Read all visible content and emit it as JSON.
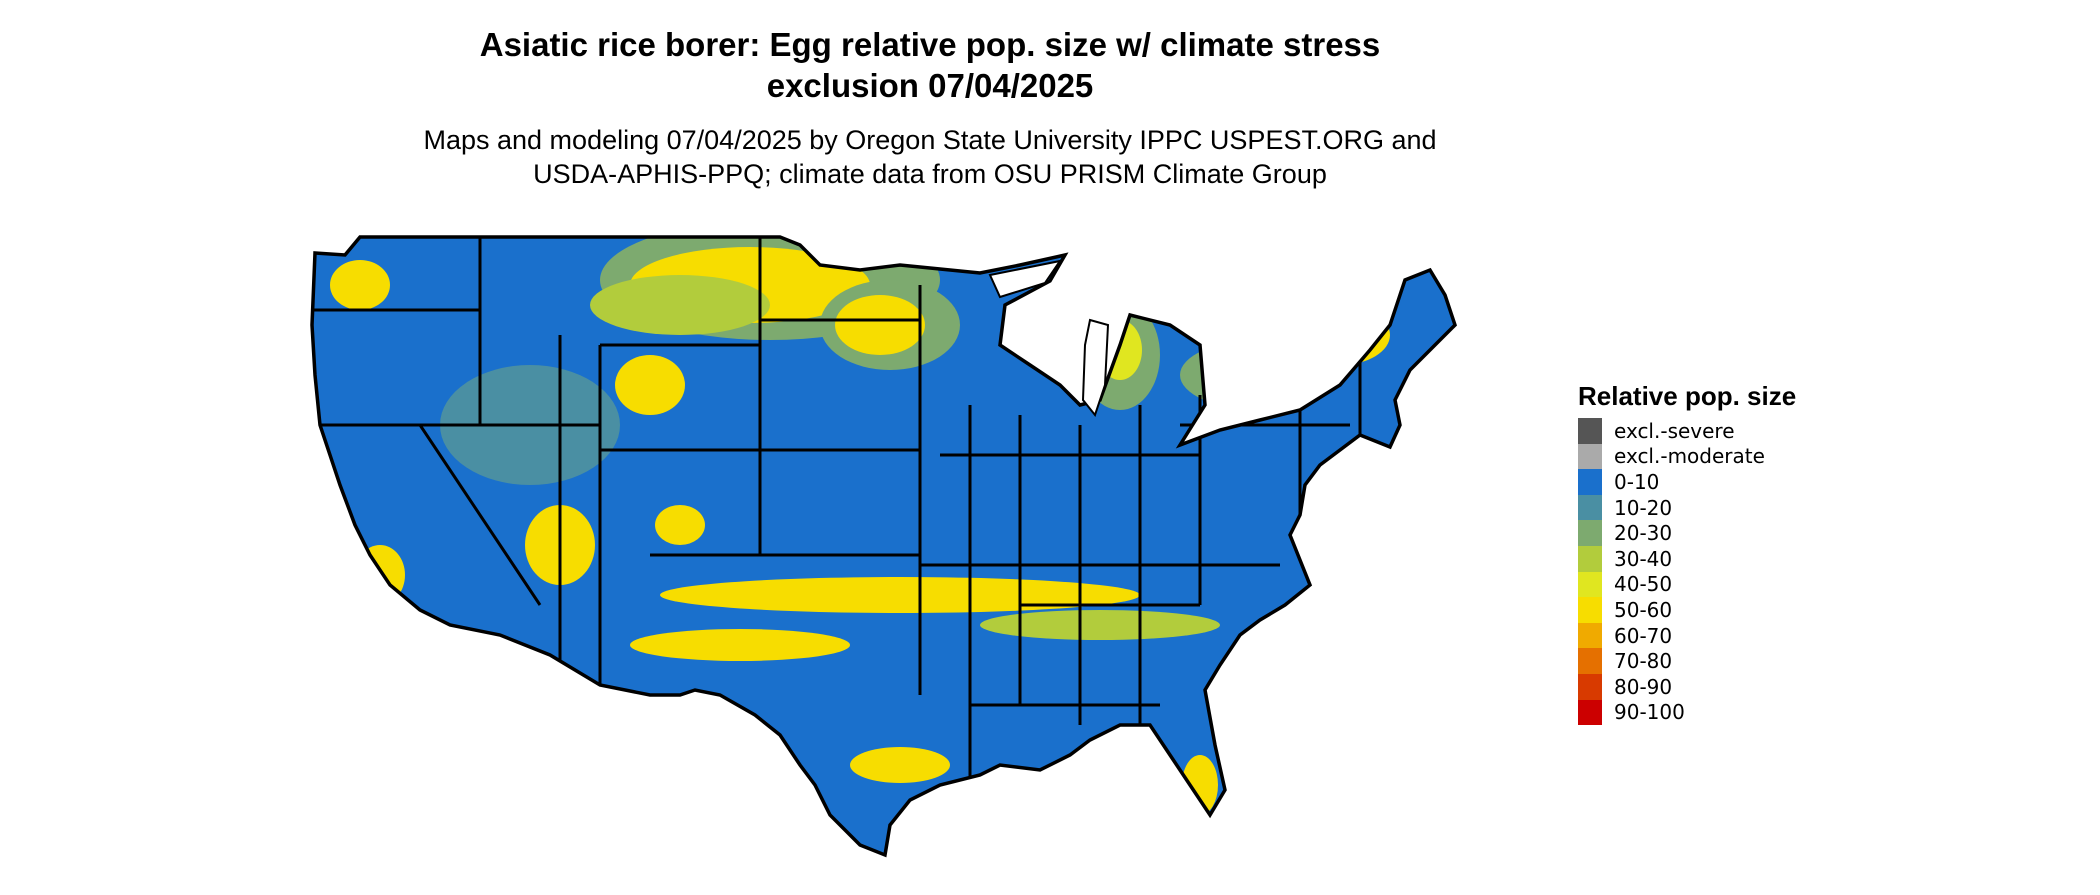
{
  "title_line1": "Asiatic rice borer: Egg relative pop. size w/ climate stress",
  "title_line2": "exclusion 07/04/2025",
  "subtitle_line1": "Maps and modeling 07/04/2025 by Oregon State University IPPC USPEST.ORG and",
  "subtitle_line2": "USDA-APHIS-PPQ; climate data from OSU PRISM Climate Group",
  "legend": {
    "title": "Relative pop. size",
    "items": [
      {
        "label": "excl.-severe",
        "color": "#555555"
      },
      {
        "label": "excl.-moderate",
        "color": "#aaaaaa"
      },
      {
        "label": "0-10",
        "color": "#1a70cc"
      },
      {
        "label": "10-20",
        "color": "#4a8fa3"
      },
      {
        "label": "20-30",
        "color": "#7daa6f"
      },
      {
        "label": "30-40",
        "color": "#b2cc3c"
      },
      {
        "label": "40-50",
        "color": "#e0e620"
      },
      {
        "label": "50-60",
        "color": "#f7dd00"
      },
      {
        "label": "60-70",
        "color": "#f0aa00"
      },
      {
        "label": "70-80",
        "color": "#e57000"
      },
      {
        "label": "80-90",
        "color": "#d83a00"
      },
      {
        "label": "90-100",
        "color": "#cc0000"
      }
    ]
  },
  "map": {
    "base_color": "#1a70cc",
    "zone_colors": {
      "mid": "#7daa6f",
      "light": "#b2cc3c",
      "yellow": "#f7dd00",
      "teal": "#4a8fa3"
    }
  }
}
